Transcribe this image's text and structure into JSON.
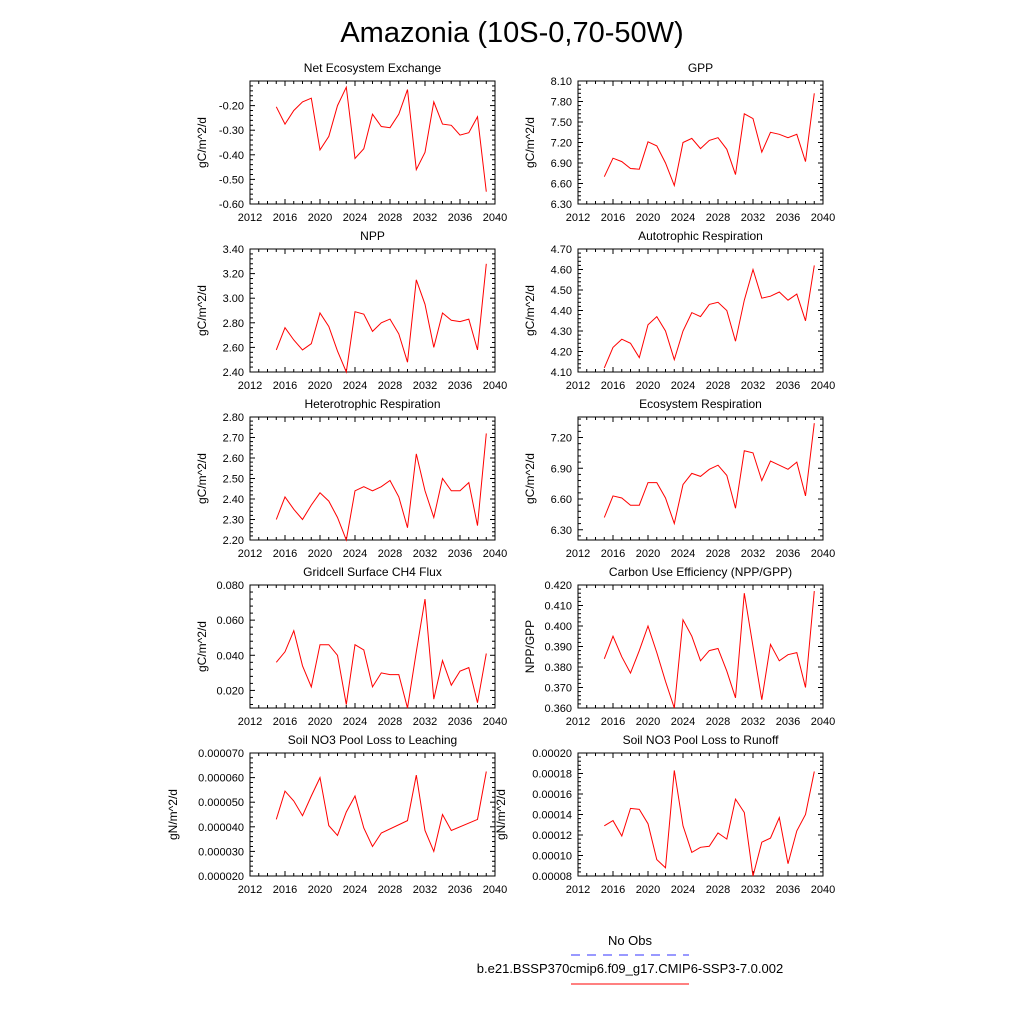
{
  "page_title": "Amazonia (10S-0,70-50W)",
  "legend": {
    "items": [
      {
        "label": "No Obs",
        "color": "#3333ff",
        "style": "dashed"
      },
      {
        "label": "b.e21.BSSP370cmip6.f09_g17.CMIP6-SSP3-7.0.002",
        "color": "#ff0000",
        "style": "solid"
      }
    ]
  },
  "chart_data": [
    {
      "type": "line",
      "title": "Net Ecosystem Exchange",
      "ylabel": "gC/m^2/d",
      "xlim": [
        2012,
        2040
      ],
      "ylim": [
        -0.6,
        -0.1
      ],
      "xticks": [
        "2012",
        "2016",
        "2020",
        "2024",
        "2028",
        "2032",
        "2036",
        "2040"
      ],
      "yticks": [
        "-0.60",
        "-0.50",
        "-0.40",
        "-0.30",
        "-0.20"
      ],
      "x": [
        2015,
        2016,
        2017,
        2018,
        2019,
        2020,
        2021,
        2022,
        2023,
        2024,
        2025,
        2026,
        2027,
        2028,
        2029,
        2030,
        2031,
        2032,
        2033,
        2034,
        2035,
        2036,
        2037,
        2038,
        2039
      ],
      "series": [
        {
          "color": "#ff0000",
          "values": [
            -0.205,
            -0.275,
            -0.22,
            -0.185,
            -0.17,
            -0.38,
            -0.325,
            -0.2,
            -0.125,
            -0.415,
            -0.375,
            -0.235,
            -0.285,
            -0.29,
            -0.235,
            -0.135,
            -0.46,
            -0.39,
            -0.185,
            -0.275,
            -0.28,
            -0.32,
            -0.31,
            -0.245,
            -0.55
          ]
        }
      ]
    },
    {
      "type": "line",
      "title": "GPP",
      "ylabel": "gC/m^2/d",
      "xlim": [
        2012,
        2040
      ],
      "ylim": [
        6.3,
        8.1
      ],
      "xticks": [
        "2012",
        "2016",
        "2020",
        "2024",
        "2028",
        "2032",
        "2036",
        "2040"
      ],
      "yticks": [
        "6.30",
        "6.60",
        "6.90",
        "7.20",
        "7.50",
        "7.80",
        "8.10"
      ],
      "x": [
        2015,
        2016,
        2017,
        2018,
        2019,
        2020,
        2021,
        2022,
        2023,
        2024,
        2025,
        2026,
        2027,
        2028,
        2029,
        2030,
        2031,
        2032,
        2033,
        2034,
        2035,
        2036,
        2037,
        2038,
        2039
      ],
      "series": [
        {
          "color": "#ff0000",
          "values": [
            6.7,
            6.97,
            6.92,
            6.82,
            6.81,
            7.21,
            7.15,
            6.9,
            6.57,
            7.2,
            7.26,
            7.11,
            7.23,
            7.27,
            7.1,
            6.73,
            7.62,
            7.55,
            7.06,
            7.35,
            7.32,
            7.27,
            7.32,
            6.92,
            7.92
          ]
        }
      ]
    },
    {
      "type": "line",
      "title": "NPP",
      "ylabel": "gC/m^2/d",
      "xlim": [
        2012,
        2040
      ],
      "ylim": [
        2.4,
        3.4
      ],
      "xticks": [
        "2012",
        "2016",
        "2020",
        "2024",
        "2028",
        "2032",
        "2036",
        "2040"
      ],
      "yticks": [
        "2.40",
        "2.60",
        "2.80",
        "3.00",
        "3.20",
        "3.40"
      ],
      "x": [
        2015,
        2016,
        2017,
        2018,
        2019,
        2020,
        2021,
        2022,
        2023,
        2024,
        2025,
        2026,
        2027,
        2028,
        2029,
        2030,
        2031,
        2032,
        2033,
        2034,
        2035,
        2036,
        2037,
        2038,
        2039
      ],
      "series": [
        {
          "color": "#ff0000",
          "values": [
            2.58,
            2.76,
            2.66,
            2.58,
            2.63,
            2.88,
            2.77,
            2.57,
            2.4,
            2.89,
            2.87,
            2.73,
            2.8,
            2.83,
            2.71,
            2.48,
            3.15,
            2.95,
            2.6,
            2.88,
            2.82,
            2.81,
            2.83,
            2.58,
            3.28
          ]
        }
      ]
    },
    {
      "type": "line",
      "title": "Autotrophic Respiration",
      "ylabel": "gC/m^2/d",
      "xlim": [
        2012,
        2040
      ],
      "ylim": [
        4.1,
        4.7
      ],
      "xticks": [
        "2012",
        "2016",
        "2020",
        "2024",
        "2028",
        "2032",
        "2036",
        "2040"
      ],
      "yticks": [
        "4.10",
        "4.20",
        "4.30",
        "4.40",
        "4.50",
        "4.60",
        "4.70"
      ],
      "x": [
        2015,
        2016,
        2017,
        2018,
        2019,
        2020,
        2021,
        2022,
        2023,
        2024,
        2025,
        2026,
        2027,
        2028,
        2029,
        2030,
        2031,
        2032,
        2033,
        2034,
        2035,
        2036,
        2037,
        2038,
        2039
      ],
      "series": [
        {
          "color": "#ff0000",
          "values": [
            4.12,
            4.22,
            4.26,
            4.24,
            4.17,
            4.33,
            4.37,
            4.3,
            4.16,
            4.3,
            4.39,
            4.37,
            4.43,
            4.44,
            4.4,
            4.25,
            4.45,
            4.6,
            4.46,
            4.47,
            4.49,
            4.45,
            4.48,
            4.35,
            4.62
          ]
        }
      ]
    },
    {
      "type": "line",
      "title": "Heterotrophic Respiration",
      "ylabel": "gC/m^2/d",
      "xlim": [
        2012,
        2040
      ],
      "ylim": [
        2.2,
        2.8
      ],
      "xticks": [
        "2012",
        "2016",
        "2020",
        "2024",
        "2028",
        "2032",
        "2036",
        "2040"
      ],
      "yticks": [
        "2.20",
        "2.30",
        "2.40",
        "2.50",
        "2.60",
        "2.70",
        "2.80"
      ],
      "x": [
        2015,
        2016,
        2017,
        2018,
        2019,
        2020,
        2021,
        2022,
        2023,
        2024,
        2025,
        2026,
        2027,
        2028,
        2029,
        2030,
        2031,
        2032,
        2033,
        2034,
        2035,
        2036,
        2037,
        2038,
        2039
      ],
      "series": [
        {
          "color": "#ff0000",
          "values": [
            2.3,
            2.41,
            2.35,
            2.3,
            2.37,
            2.43,
            2.39,
            2.31,
            2.2,
            2.44,
            2.46,
            2.44,
            2.46,
            2.49,
            2.41,
            2.26,
            2.62,
            2.44,
            2.31,
            2.5,
            2.44,
            2.44,
            2.48,
            2.27,
            2.72
          ]
        }
      ]
    },
    {
      "type": "line",
      "title": "Ecosystem Respiration",
      "ylabel": "gC/m^2/d",
      "xlim": [
        2012,
        2040
      ],
      "ylim": [
        6.2,
        7.4
      ],
      "xticks": [
        "2012",
        "2016",
        "2020",
        "2024",
        "2028",
        "2032",
        "2036",
        "2040"
      ],
      "yticks": [
        "6.30",
        "6.60",
        "6.90",
        "7.20"
      ],
      "x": [
        2015,
        2016,
        2017,
        2018,
        2019,
        2020,
        2021,
        2022,
        2023,
        2024,
        2025,
        2026,
        2027,
        2028,
        2029,
        2030,
        2031,
        2032,
        2033,
        2034,
        2035,
        2036,
        2037,
        2038,
        2039
      ],
      "series": [
        {
          "color": "#ff0000",
          "values": [
            6.42,
            6.63,
            6.61,
            6.54,
            6.54,
            6.76,
            6.76,
            6.61,
            6.36,
            6.74,
            6.85,
            6.82,
            6.89,
            6.93,
            6.83,
            6.51,
            7.07,
            7.05,
            6.78,
            6.97,
            6.93,
            6.89,
            6.96,
            6.63,
            7.34
          ]
        }
      ]
    },
    {
      "type": "line",
      "title": "Gridcell Surface CH4 Flux",
      "ylabel": "gC/m^2/d",
      "xlim": [
        2012,
        2040
      ],
      "ylim": [
        0.01,
        0.08
      ],
      "xticks": [
        "2012",
        "2016",
        "2020",
        "2024",
        "2028",
        "2032",
        "2036",
        "2040"
      ],
      "yticks": [
        "0.020",
        "0.040",
        "0.060",
        "0.080"
      ],
      "x": [
        2015,
        2016,
        2017,
        2018,
        2019,
        2020,
        2021,
        2022,
        2023,
        2024,
        2025,
        2026,
        2027,
        2028,
        2029,
        2030,
        2031,
        2032,
        2033,
        2034,
        2035,
        2036,
        2037,
        2038,
        2039
      ],
      "series": [
        {
          "color": "#ff0000",
          "values": [
            0.036,
            0.042,
            0.054,
            0.034,
            0.022,
            0.046,
            0.046,
            0.04,
            0.012,
            0.046,
            0.043,
            0.022,
            0.03,
            0.029,
            0.029,
            0.01,
            0.042,
            0.072,
            0.015,
            0.037,
            0.023,
            0.031,
            0.033,
            0.013,
            0.041
          ]
        }
      ]
    },
    {
      "type": "line",
      "title": "Carbon Use Efficiency (NPP/GPP)",
      "ylabel": "NPP/GPP",
      "xlim": [
        2012,
        2040
      ],
      "ylim": [
        0.36,
        0.42
      ],
      "xticks": [
        "2012",
        "2016",
        "2020",
        "2024",
        "2028",
        "2032",
        "2036",
        "2040"
      ],
      "yticks": [
        "0.360",
        "0.370",
        "0.380",
        "0.390",
        "0.400",
        "0.410",
        "0.420"
      ],
      "x": [
        2015,
        2016,
        2017,
        2018,
        2019,
        2020,
        2021,
        2022,
        2023,
        2024,
        2025,
        2026,
        2027,
        2028,
        2029,
        2030,
        2031,
        2032,
        2033,
        2034,
        2035,
        2036,
        2037,
        2038,
        2039
      ],
      "series": [
        {
          "color": "#ff0000",
          "values": [
            0.384,
            0.395,
            0.385,
            0.377,
            0.388,
            0.4,
            0.387,
            0.373,
            0.36,
            0.403,
            0.395,
            0.383,
            0.388,
            0.389,
            0.378,
            0.365,
            0.416,
            0.39,
            0.364,
            0.391,
            0.383,
            0.386,
            0.387,
            0.37,
            0.417
          ]
        }
      ]
    },
    {
      "type": "line",
      "title": "Soil NO3 Pool Loss to Leaching",
      "ylabel": "gN/m^2/d",
      "xlim": [
        2012,
        2040
      ],
      "ylim": [
        2e-05,
        7e-05
      ],
      "xticks": [
        "2012",
        "2016",
        "2020",
        "2024",
        "2028",
        "2032",
        "2036",
        "2040"
      ],
      "yticks": [
        "0.000020",
        "0.000030",
        "0.000040",
        "0.000050",
        "0.000060",
        "0.000070"
      ],
      "x": [
        2015,
        2016,
        2017,
        2018,
        2019,
        2020,
        2021,
        2022,
        2023,
        2024,
        2025,
        2026,
        2027,
        2030,
        2031,
        2032,
        2033,
        2034,
        2035,
        2038,
        2039
      ],
      "series": [
        {
          "color": "#ff0000",
          "values": [
            4.3e-05,
            5.45e-05,
            5.05e-05,
            4.45e-05,
            5.25e-05,
            6e-05,
            4.05e-05,
            3.65e-05,
            4.6e-05,
            5.25e-05,
            3.95e-05,
            3.2e-05,
            3.75e-05,
            4.25e-05,
            6.1e-05,
            3.85e-05,
            3e-05,
            4.5e-05,
            3.85e-05,
            4.3e-05,
            6.25e-05
          ]
        }
      ]
    },
    {
      "type": "line",
      "title": "Soil NO3 Pool Loss to Runoff",
      "ylabel": "gN/m^2/d",
      "xlim": [
        2012,
        2040
      ],
      "ylim": [
        8e-05,
        0.0002
      ],
      "xticks": [
        "2012",
        "2016",
        "2020",
        "2024",
        "2028",
        "2032",
        "2036",
        "2040"
      ],
      "yticks": [
        "0.00008",
        "0.00010",
        "0.00012",
        "0.00014",
        "0.00016",
        "0.00018",
        "0.00020"
      ],
      "x": [
        2015,
        2016,
        2017,
        2018,
        2019,
        2020,
        2021,
        2022,
        2023,
        2024,
        2025,
        2026,
        2027,
        2028,
        2029,
        2030,
        2031,
        2032,
        2033,
        2034,
        2035,
        2036,
        2037,
        2038,
        2039
      ],
      "series": [
        {
          "color": "#ff0000",
          "values": [
            0.000129,
            0.000134,
            0.000119,
            0.000146,
            0.000145,
            0.000131,
            9.6e-05,
            8.8e-05,
            0.000183,
            0.000129,
            0.000103,
            0.000108,
            0.000109,
            0.000122,
            0.000116,
            0.000155,
            0.000142,
            8e-05,
            0.000113,
            0.000117,
            0.000137,
            9.2e-05,
            0.000124,
            0.00014,
            0.000182
          ]
        }
      ]
    }
  ]
}
